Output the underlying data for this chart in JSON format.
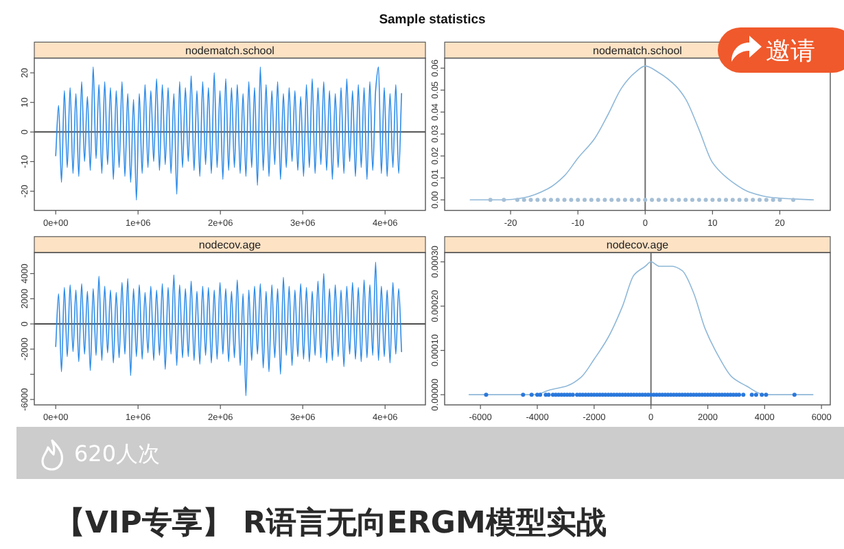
{
  "chart_data": [
    {
      "type": "other",
      "title": "Sample statistics",
      "annotations": [
        "邀请",
        "620人次",
        "【VIP专享】 R语言无向ERGM模型实战"
      ]
    },
    {
      "type": "line",
      "title": "nodematch.school",
      "x": [
        0,
        35000,
        70000,
        105000,
        140000,
        175000,
        210000,
        245000,
        280000,
        315000,
        350000,
        385000,
        420000,
        455000,
        490000,
        525000,
        560000,
        595000,
        630000,
        665000,
        700000,
        735000,
        770000,
        805000,
        840000,
        875000,
        910000,
        945000,
        980000,
        1015000,
        1050000,
        1085000,
        1120000,
        1155000,
        1190000,
        1225000,
        1260000,
        1295000,
        1330000,
        1365000,
        1400000,
        1435000,
        1470000,
        1505000,
        1540000,
        1575000,
        1610000,
        1645000,
        1680000,
        1715000,
        1750000,
        1785000,
        1820000,
        1855000,
        1890000,
        1925000,
        1960000,
        1995000,
        2030000,
        2065000,
        2100000,
        2135000,
        2170000,
        2205000,
        2240000,
        2275000,
        2310000,
        2345000,
        2380000,
        2415000,
        2450000,
        2485000,
        2520000,
        2555000,
        2590000,
        2625000,
        2660000,
        2695000,
        2730000,
        2765000,
        2800000,
        2835000,
        2870000,
        2905000,
        2940000,
        2975000,
        3010000,
        3045000,
        3080000,
        3115000,
        3150000,
        3185000,
        3220000,
        3255000,
        3290000,
        3325000,
        3360000,
        3395000,
        3430000,
        3465000,
        3500000,
        3535000,
        3570000,
        3605000,
        3640000,
        3675000,
        3710000,
        3745000,
        3780000,
        3815000,
        3850000,
        3885000,
        3920000,
        3955000,
        3990000,
        4025000,
        4060000,
        4095000,
        4130000,
        4165000,
        4200000
      ],
      "series": [
        {
          "color": "#2d8be8",
          "values": [
            -8,
            9,
            -17,
            14,
            -12,
            15,
            -14,
            13,
            -15,
            17,
            -10,
            12,
            -13,
            22,
            -9,
            16,
            -14,
            17,
            -11,
            15,
            -16,
            14,
            -12,
            17,
            -15,
            13,
            -17,
            11,
            -23,
            13,
            -14,
            16,
            -12,
            14,
            -10,
            18,
            -13,
            16,
            -11,
            15,
            -14,
            13,
            -21,
            17,
            -12,
            15,
            -10,
            19,
            -13,
            14,
            -15,
            17,
            -11,
            15,
            -14,
            20,
            -12,
            14,
            -16,
            18,
            -13,
            15,
            -12,
            16,
            -14,
            13,
            -15,
            17,
            -12,
            15,
            -18,
            22,
            -13,
            16,
            -15,
            14,
            -11,
            17,
            -16,
            13,
            -12,
            15,
            -10,
            14,
            -13,
            12,
            -15,
            16,
            -12,
            18,
            -14,
            15,
            -11,
            17,
            -13,
            14,
            -16,
            13,
            -12,
            15,
            -14,
            18,
            -10,
            14,
            -15,
            16,
            -12,
            15,
            -16,
            17,
            -13,
            14,
            22,
            -14,
            15,
            -15,
            13,
            -12,
            16,
            -14,
            13
          ]
        }
      ],
      "xlim": [
        -260000,
        4490000
      ],
      "xticks": [
        {
          "value": 0,
          "label": "0e+00"
        },
        {
          "value": 1000000,
          "label": "1e+06"
        },
        {
          "value": 2000000,
          "label": "2e+06"
        },
        {
          "value": 3000000,
          "label": "3e+06"
        },
        {
          "value": 4000000,
          "label": "4e+06"
        }
      ],
      "ylim": [
        -26.5,
        25
      ],
      "yticks": [
        -20,
        -10,
        0,
        10,
        20
      ],
      "ref_lines": [
        {
          "axis": "y",
          "value": 0,
          "color": "#4d4d4d"
        }
      ]
    },
    {
      "type": "scatter",
      "title": "nodematch.school",
      "series": [
        {
          "type": "line",
          "color": "#8fb8d8",
          "x": [
            -26,
            -21,
            -18,
            -14.5,
            -12,
            -10,
            -7.5,
            -5.5,
            -3.5,
            -1.5,
            0,
            2,
            4.5,
            6,
            8,
            10,
            13,
            15.5,
            19,
            25
          ],
          "values": [
            0,
            0,
            0.001,
            0.005,
            0.011,
            0.019,
            0.028,
            0.039,
            0.051,
            0.058,
            0.061,
            0.058,
            0.052,
            0.046,
            0.032,
            0.017,
            0.008,
            0.0035,
            0.001,
            0
          ]
        },
        {
          "color": "#a5bfd6",
          "x": [
            -23,
            -21,
            -19,
            -18,
            -17,
            -16,
            -15,
            -14,
            -13,
            -12,
            -11,
            -10,
            -9,
            -8,
            -7,
            -6,
            -5,
            -4,
            -3,
            -2,
            -1,
            0,
            1,
            2,
            3,
            4,
            5,
            6,
            7,
            8,
            9,
            10,
            11,
            12,
            13,
            14,
            15,
            16,
            17,
            18,
            19,
            20,
            22
          ],
          "values": [
            0,
            0,
            0,
            0,
            0,
            0,
            0,
            0,
            0,
            0,
            0,
            0,
            0,
            0,
            0,
            0,
            0,
            0,
            0,
            0,
            0,
            0,
            0,
            0,
            0,
            0,
            0,
            0,
            0,
            0,
            0,
            0,
            0,
            0,
            0,
            0,
            0,
            0,
            0,
            0,
            0,
            0,
            0
          ]
        }
      ],
      "xlim": [
        -29.8,
        27.5
      ],
      "xticks": [
        -20,
        -10,
        0,
        10,
        20
      ],
      "ylim": [
        -0.0048,
        0.0646
      ],
      "yticks": [
        {
          "value": 0,
          "label": "0.00"
        },
        0.01,
        0.02,
        0.03,
        0.04,
        0.05,
        0.06
      ],
      "ref_lines": [
        {
          "axis": "x",
          "value": 0,
          "color": "#707070"
        }
      ]
    },
    {
      "type": "line",
      "title": "nodecov.age",
      "x": [
        0,
        35000,
        70000,
        105000,
        140000,
        175000,
        210000,
        245000,
        280000,
        315000,
        350000,
        385000,
        420000,
        455000,
        490000,
        525000,
        560000,
        595000,
        630000,
        665000,
        700000,
        735000,
        770000,
        805000,
        840000,
        875000,
        910000,
        945000,
        980000,
        1015000,
        1050000,
        1085000,
        1120000,
        1155000,
        1190000,
        1225000,
        1260000,
        1295000,
        1330000,
        1365000,
        1400000,
        1435000,
        1470000,
        1505000,
        1540000,
        1575000,
        1610000,
        1645000,
        1680000,
        1715000,
        1750000,
        1785000,
        1820000,
        1855000,
        1890000,
        1925000,
        1960000,
        1995000,
        2030000,
        2065000,
        2100000,
        2135000,
        2170000,
        2205000,
        2240000,
        2275000,
        2310000,
        2345000,
        2380000,
        2415000,
        2450000,
        2485000,
        2520000,
        2555000,
        2590000,
        2625000,
        2660000,
        2695000,
        2730000,
        2765000,
        2800000,
        2835000,
        2870000,
        2905000,
        2940000,
        2975000,
        3010000,
        3045000,
        3080000,
        3115000,
        3150000,
        3185000,
        3220000,
        3255000,
        3290000,
        3325000,
        3360000,
        3395000,
        3430000,
        3465000,
        3500000,
        3535000,
        3570000,
        3605000,
        3640000,
        3675000,
        3710000,
        3745000,
        3780000,
        3815000,
        3850000,
        3885000,
        3920000,
        3955000,
        3990000,
        4025000,
        4060000,
        4095000,
        4130000,
        4165000,
        4200000
      ],
      "series": [
        {
          "color": "#2d8be8",
          "values": [
            -1800,
            2400,
            -3800,
            2900,
            -2600,
            3100,
            -2200,
            2700,
            -3000,
            3200,
            -2400,
            2600,
            -3700,
            2800,
            -2500,
            3800,
            -2900,
            3000,
            -2300,
            2700,
            -3100,
            2500,
            -2700,
            3300,
            -2400,
            3600,
            -4100,
            2800,
            -2600,
            3100,
            -2800,
            2500,
            -2300,
            3000,
            -2900,
            2700,
            -2500,
            3200,
            -3600,
            2900,
            -2400,
            3900,
            -3300,
            3100,
            -2700,
            2800,
            -2600,
            3400,
            -2900,
            2600,
            -3200,
            3000,
            -2500,
            2900,
            -3100,
            2700,
            -2800,
            3300,
            -2400,
            2800,
            -3000,
            2600,
            -2700,
            3500,
            -3300,
            2400,
            -5700,
            2700,
            -2900,
            3000,
            -2400,
            3200,
            -3500,
            2600,
            -3800,
            3100,
            -2700,
            2800,
            -4000,
            3700,
            -2500,
            3000,
            -3300,
            2700,
            -2600,
            3200,
            -2800,
            2900,
            -3000,
            2600,
            -2500,
            3400,
            -2700,
            4000,
            -3100,
            2800,
            -2900,
            3100,
            -2600,
            2700,
            -3400,
            3000,
            -2400,
            3300,
            -2800,
            2900,
            -3000,
            3500,
            -2700,
            3100,
            -2500,
            4900,
            -2900,
            3000,
            -2600,
            2700,
            -3100,
            3300,
            -2400,
            2800,
            -2200
          ]
        }
      ],
      "xlim": [
        -260000,
        4490000
      ],
      "xticks": [
        {
          "value": 0,
          "label": "0e+00"
        },
        {
          "value": 1000000,
          "label": "1e+06"
        },
        {
          "value": 2000000,
          "label": "2e+06"
        },
        {
          "value": 3000000,
          "label": "3e+06"
        },
        {
          "value": 4000000,
          "label": "4e+06"
        }
      ],
      "ylim": [
        -6430,
        5670
      ],
      "yticks": [
        -6000,
        {
          "value": -4000,
          "label": null
        },
        -2000,
        0,
        2000,
        4000
      ],
      "ref_lines": [
        {
          "axis": "y",
          "value": 0,
          "color": "#4d4d4d"
        }
      ]
    },
    {
      "type": "scatter",
      "title": "nodecov.age",
      "series": [
        {
          "type": "line",
          "color": "#8fb8d8",
          "x": [
            -6400,
            -4700,
            -4050,
            -3600,
            -2950,
            -2450,
            -2000,
            -1500,
            -1000,
            -600,
            -200,
            0,
            300,
            750,
            1100,
            1500,
            1900,
            2350,
            2850,
            3350,
            4000,
            5700
          ],
          "values": [
            0,
            0,
            0,
            1e-05,
            2e-05,
            4e-05,
            8e-05,
            0.00013,
            0.0002,
            0.00027,
            0.00029,
            0.0003,
            0.00029,
            0.00029,
            0.00028,
            0.00023,
            0.00015,
            9e-05,
            4e-05,
            2e-05,
            0,
            0
          ]
        },
        {
          "color": "#2a78dc",
          "x": [
            -5800,
            -4500,
            -4200,
            -4000,
            -3900,
            -3700,
            -3600,
            -3450,
            -3350,
            -3250,
            -3150,
            -3050,
            -2950,
            -2850,
            -2750,
            -2600,
            -2500,
            -2400,
            -2300,
            -2200,
            -2100,
            -2000,
            -1900,
            -1800,
            -1700,
            -1600,
            -1500,
            -1400,
            -1300,
            -1200,
            -1100,
            -1000,
            -900,
            -800,
            -700,
            -600,
            -500,
            -400,
            -300,
            -200,
            -100,
            0,
            100,
            200,
            300,
            400,
            500,
            600,
            700,
            800,
            900,
            1000,
            1100,
            1200,
            1300,
            1400,
            1500,
            1600,
            1700,
            1800,
            1900,
            2000,
            2100,
            2200,
            2300,
            2400,
            2500,
            2600,
            2700,
            2800,
            2900,
            3000,
            3100,
            3250,
            3550,
            3700,
            3900,
            4050,
            5050
          ],
          "values": [
            0,
            0,
            0,
            0,
            0,
            0,
            0,
            0,
            0,
            0,
            0,
            0,
            0,
            0,
            0,
            0,
            0,
            0,
            0,
            0,
            0,
            0,
            0,
            0,
            0,
            0,
            0,
            0,
            0,
            0,
            0,
            0,
            0,
            0,
            0,
            0,
            0,
            0,
            0,
            0,
            0,
            0,
            0,
            0,
            0,
            0,
            0,
            0,
            0,
            0,
            0,
            0,
            0,
            0,
            0,
            0,
            0,
            0,
            0,
            0,
            0,
            0,
            0,
            0,
            0,
            0,
            0,
            0,
            0,
            0,
            0,
            0,
            0,
            0,
            0,
            0,
            0,
            0,
            0
          ]
        }
      ],
      "xlim": [
        -7260,
        6310
      ],
      "xticks": [
        -6000,
        -4000,
        -2000,
        0,
        2000,
        4000,
        6000
      ],
      "ylim": [
        -2.3e-05,
        0.000321
      ],
      "yticks": [
        {
          "value": 0,
          "label": "0.00000"
        },
        {
          "value": 0.0001,
          "label": "0.00010"
        },
        {
          "value": 0.0002,
          "label": "0.00020"
        },
        {
          "value": 0.0003,
          "label": "0.00030"
        }
      ],
      "ref_lines": [
        {
          "axis": "x",
          "value": 0,
          "color": "#707070"
        }
      ]
    }
  ]
}
